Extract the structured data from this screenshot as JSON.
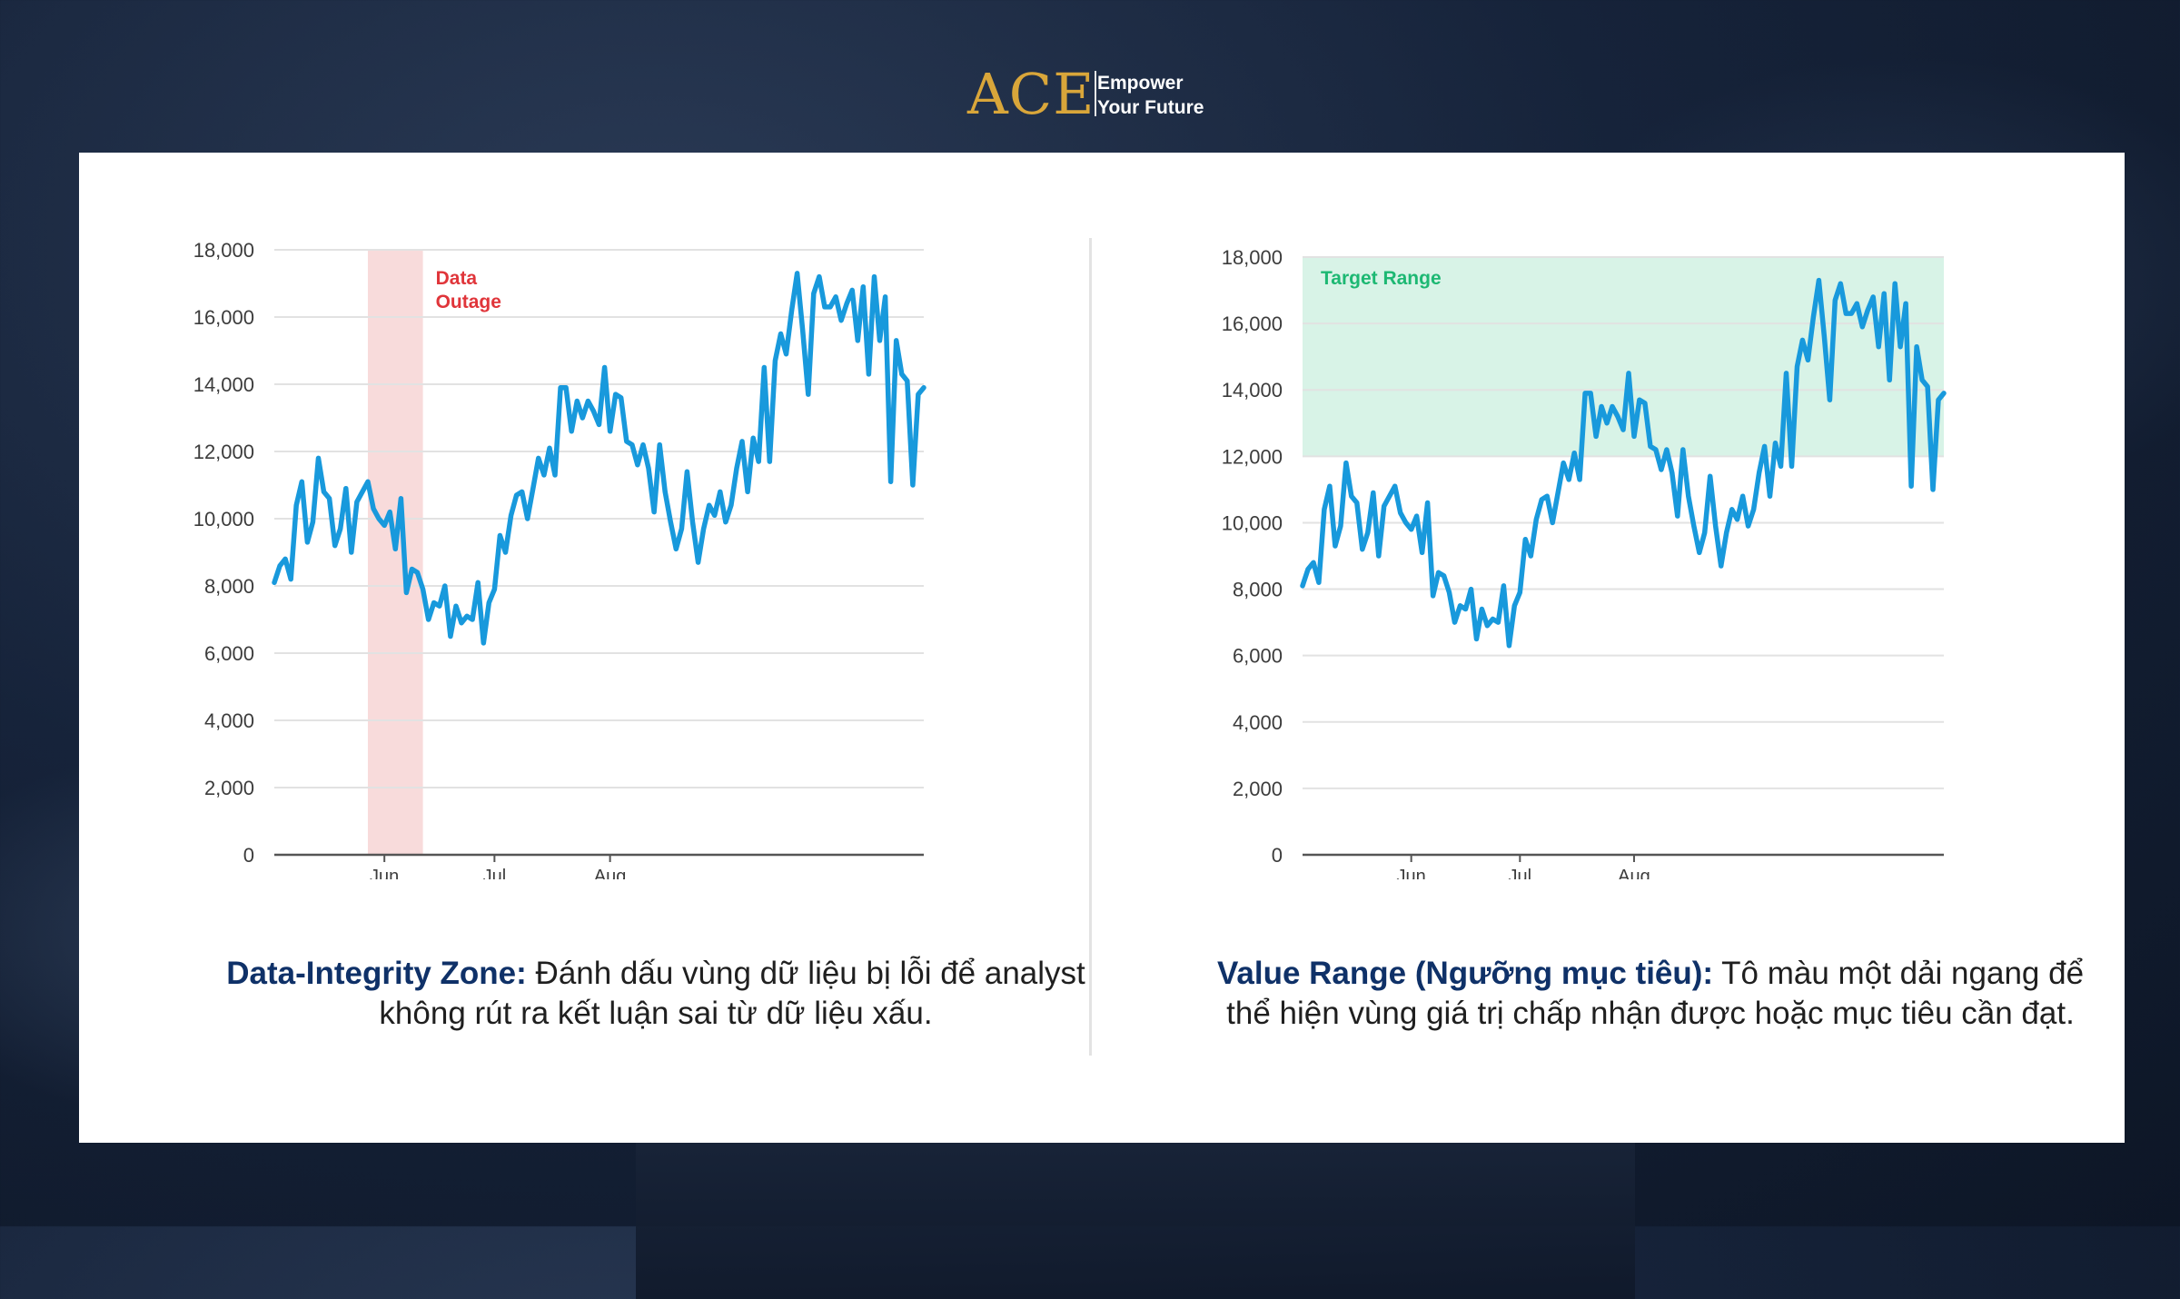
{
  "header": {
    "logo_text": "ACE",
    "tagline_line1": "Empower",
    "tagline_line2": "Your Future"
  },
  "captions": {
    "left_highlight": "Data-Integrity Zone:",
    "left_text": " Đánh dấu vùng dữ liệu bị lỗi để analyst không rút ra kết luận sai từ dữ liệu xấu.",
    "right_highlight": "Value Range (Ngưỡng mục tiêu):",
    "right_text": " Tô màu một dải ngang để thể hiện vùng giá trị chấp nhận được hoặc mục tiêu cần đạt."
  },
  "colors": {
    "line": "#1899dc",
    "outage_band": "#f8dbdb",
    "outage_label": "#e0353a",
    "target_band": "#d8f3e7",
    "target_label": "#1db873",
    "caption_highlight": "#0f3168",
    "logo": "#d9a63a"
  },
  "chart_data": [
    {
      "type": "line",
      "xlabel": "",
      "ylabel": "",
      "ylim": [
        0,
        18000
      ],
      "y_ticks": [
        0,
        2000,
        4000,
        6000,
        8000,
        10000,
        12000,
        14000,
        16000,
        18000
      ],
      "y_tick_labels": [
        "0",
        "2,000",
        "4,000",
        "6,000",
        "8,000",
        "10,000",
        "12,000",
        "14,000",
        "16,000",
        "18,000"
      ],
      "x_tick_labels": [
        "Jun",
        "Jul",
        "Aug"
      ],
      "x_tick_positions": [
        20,
        40,
        61
      ],
      "grid": true,
      "annotation": {
        "kind": "vertical-band",
        "x_range": [
          17,
          27
        ],
        "label_line1": "Data",
        "label_line2": "Outage"
      },
      "series": [
        {
          "values": [
            8100,
            8600,
            8800,
            8200,
            10400,
            11100,
            9300,
            9900,
            11800,
            10800,
            10600,
            9200,
            9700,
            10900,
            9000,
            10500,
            10800,
            11100,
            10300,
            10000,
            9800,
            10200,
            9100,
            10600,
            7800,
            8500,
            8400,
            7900,
            7000,
            7500,
            7400,
            8000,
            6500,
            7400,
            6900,
            7100,
            7000,
            8100,
            6300,
            7500,
            7900,
            9500,
            9000,
            10100,
            10700,
            10800,
            10000,
            10900,
            11800,
            11300,
            12100,
            11300,
            13900,
            13900,
            12600,
            13500,
            13000,
            13500,
            13200,
            12800,
            14500,
            12600,
            13700,
            13600,
            12300,
            12200,
            11600,
            12200,
            11500,
            10200,
            12200,
            10800,
            9900,
            9100,
            9700,
            11400,
            9900,
            8700,
            9700,
            10400,
            10100,
            10800,
            9900,
            10400,
            11500,
            12300,
            10800,
            12400,
            11700,
            14500,
            11700,
            14700,
            15500,
            14900,
            16200,
            17300,
            15600,
            13700,
            16700,
            17200,
            16300,
            16300,
            16600,
            15900,
            16400,
            16800,
            15300,
            16900,
            14300,
            17200,
            15300,
            16600,
            11100,
            15300,
            14300,
            14100,
            11000,
            13700,
            13900
          ]
        }
      ]
    },
    {
      "type": "line",
      "xlabel": "",
      "ylabel": "",
      "ylim": [
        0,
        18000
      ],
      "y_ticks": [
        0,
        2000,
        4000,
        6000,
        8000,
        10000,
        12000,
        14000,
        16000,
        18000
      ],
      "y_tick_labels": [
        "0",
        "2,000",
        "4,000",
        "6,000",
        "8,000",
        "10,000",
        "12,000",
        "14,000",
        "16,000",
        "18,000"
      ],
      "x_tick_labels": [
        "Jun",
        "Jul",
        "Aug"
      ],
      "x_tick_positions": [
        20,
        40,
        61
      ],
      "grid": true,
      "annotation": {
        "kind": "horizontal-band",
        "y_range": [
          12000,
          18000
        ],
        "label": "Target Range"
      },
      "series": [
        {
          "values": [
            8100,
            8600,
            8800,
            8200,
            10400,
            11100,
            9300,
            9900,
            11800,
            10800,
            10600,
            9200,
            9700,
            10900,
            9000,
            10500,
            10800,
            11100,
            10300,
            10000,
            9800,
            10200,
            9100,
            10600,
            7800,
            8500,
            8400,
            7900,
            7000,
            7500,
            7400,
            8000,
            6500,
            7400,
            6900,
            7100,
            7000,
            8100,
            6300,
            7500,
            7900,
            9500,
            9000,
            10100,
            10700,
            10800,
            10000,
            10900,
            11800,
            11300,
            12100,
            11300,
            13900,
            13900,
            12600,
            13500,
            13000,
            13500,
            13200,
            12800,
            14500,
            12600,
            13700,
            13600,
            12300,
            12200,
            11600,
            12200,
            11500,
            10200,
            12200,
            10800,
            9900,
            9100,
            9700,
            11400,
            9900,
            8700,
            9700,
            10400,
            10100,
            10800,
            9900,
            10400,
            11500,
            12300,
            10800,
            12400,
            11700,
            14500,
            11700,
            14700,
            15500,
            14900,
            16200,
            17300,
            15600,
            13700,
            16700,
            17200,
            16300,
            16300,
            16600,
            15900,
            16400,
            16800,
            15300,
            16900,
            14300,
            17200,
            15300,
            16600,
            11100,
            15300,
            14300,
            14100,
            11000,
            13700,
            13900
          ]
        }
      ]
    }
  ]
}
